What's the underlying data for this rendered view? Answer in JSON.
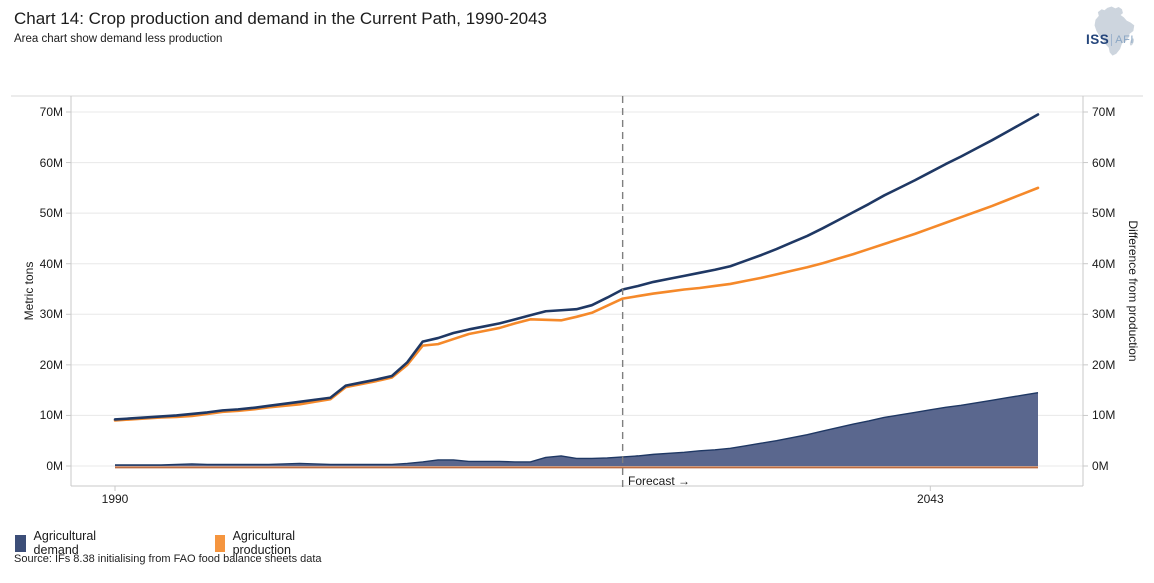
{
  "header": {
    "title": "Chart 14: Crop production and demand in the Current Path, 1990-2043",
    "subtitle": "Area chart show demand less production"
  },
  "logo": {
    "org": "ISS",
    "unit": "AFI"
  },
  "chart_data": {
    "type": "line+area",
    "title": "Chart 14: Crop production and demand in the Current Path, 1990-2043",
    "left_axis_label": "Metric tons",
    "right_axis_label": "Difference from production",
    "y_tick_labels": [
      "0M",
      "10M",
      "20M",
      "30M",
      "40M",
      "50M",
      "60M",
      "70M"
    ],
    "y_tick_values": [
      0,
      10,
      20,
      30,
      40,
      50,
      60,
      70
    ],
    "ylim": [
      0,
      70
    ],
    "x_tick_labels": [
      "1990",
      "2043"
    ],
    "x_tick_years": [
      1990,
      2043
    ],
    "xlim": [
      1990,
      2050
    ],
    "grid": true,
    "legend_position": "bottom-left",
    "forecast": {
      "label": "Forecast →",
      "year": 2023
    },
    "years": [
      1990,
      1991,
      1992,
      1993,
      1994,
      1995,
      1996,
      1997,
      1998,
      1999,
      2000,
      2001,
      2002,
      2003,
      2004,
      2005,
      2006,
      2007,
      2008,
      2009,
      2010,
      2011,
      2012,
      2013,
      2014,
      2015,
      2016,
      2017,
      2018,
      2019,
      2020,
      2021,
      2022,
      2023,
      2024,
      2025,
      2026,
      2027,
      2028,
      2029,
      2030,
      2031,
      2032,
      2033,
      2034,
      2035,
      2036,
      2037,
      2038,
      2039,
      2040,
      2041,
      2042,
      2043,
      2044,
      2045,
      2046,
      2047,
      2048,
      2049,
      2050
    ],
    "series": [
      {
        "name": "Agricultural demand",
        "type": "line",
        "axis": "left",
        "color": "#1f3864",
        "values": [
          9.2,
          9.4,
          9.6,
          9.8,
          10.0,
          10.3,
          10.6,
          11.0,
          11.2,
          11.5,
          11.9,
          12.3,
          12.7,
          13.1,
          13.5,
          15.9,
          16.5,
          17.1,
          17.8,
          20.5,
          24.6,
          25.3,
          26.3,
          27.0,
          27.6,
          28.2,
          29.0,
          29.8,
          30.6,
          30.8,
          31.0,
          31.8,
          33.3,
          34.9,
          35.6,
          36.4,
          37.0,
          37.6,
          38.2,
          38.8,
          39.5,
          40.6,
          41.7,
          42.9,
          44.2,
          45.5,
          47.0,
          48.6,
          50.2,
          51.8,
          53.5,
          55.0,
          56.5,
          58.1,
          59.7,
          61.2,
          62.8,
          64.4,
          66.1,
          67.8,
          69.5
        ]
      },
      {
        "name": "Agricultural production",
        "type": "line",
        "axis": "left",
        "color": "#f5892a",
        "values": [
          9.0,
          9.2,
          9.4,
          9.6,
          9.7,
          9.9,
          10.3,
          10.7,
          10.9,
          11.2,
          11.6,
          11.9,
          12.2,
          12.7,
          13.2,
          15.6,
          16.2,
          16.8,
          17.5,
          20.0,
          23.8,
          24.1,
          25.1,
          26.1,
          26.7,
          27.3,
          28.2,
          29.0,
          28.9,
          28.8,
          29.5,
          30.3,
          31.7,
          33.1,
          33.6,
          34.1,
          34.5,
          34.9,
          35.2,
          35.6,
          36.0,
          36.6,
          37.2,
          37.9,
          38.6,
          39.3,
          40.1,
          41.0,
          41.9,
          42.9,
          43.9,
          44.9,
          45.9,
          47.0,
          48.1,
          49.2,
          50.3,
          51.4,
          52.6,
          53.8,
          55.0
        ]
      },
      {
        "name": "Demand less production",
        "type": "area",
        "axis": "right",
        "color": "#5a678e",
        "values": [
          0.2,
          0.2,
          0.2,
          0.2,
          0.3,
          0.4,
          0.3,
          0.3,
          0.3,
          0.3,
          0.3,
          0.4,
          0.5,
          0.4,
          0.3,
          0.3,
          0.3,
          0.3,
          0.3,
          0.5,
          0.8,
          1.2,
          1.2,
          0.9,
          0.9,
          0.9,
          0.8,
          0.8,
          1.7,
          2.0,
          1.5,
          1.5,
          1.6,
          1.8,
          2.0,
          2.3,
          2.5,
          2.7,
          3.0,
          3.2,
          3.5,
          4.0,
          4.5,
          5.0,
          5.6,
          6.2,
          6.9,
          7.6,
          8.3,
          8.9,
          9.6,
          10.1,
          10.6,
          11.1,
          11.6,
          12.0,
          12.5,
          13.0,
          13.5,
          14.0,
          14.5
        ]
      }
    ],
    "style": {
      "grid_color": "#e8e8e8",
      "axis_color": "#c9c9c9",
      "top_border_color": "#d9d9d9",
      "area_fill": "#5a678e",
      "area_top_stroke": "#1f3864",
      "area_base_stroke": "#bc6c42",
      "forecast_line_color": "#7f7f7f"
    }
  },
  "legend": {
    "items": [
      {
        "label": "Agricultural demand",
        "color": "#3c4e78"
      },
      {
        "label": "Agricultural production",
        "color": "#f5953f"
      }
    ]
  },
  "source": "Source: IFs 8.38 initialising from FAO food balance sheets data"
}
